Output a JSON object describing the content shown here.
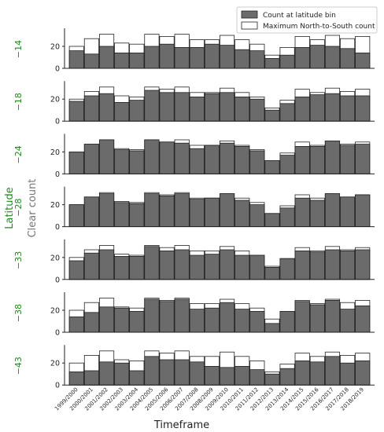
{
  "chart_data": {
    "type": "bar",
    "xlabel": "Timeframe",
    "ylabel_outer": "Latitude",
    "ylabel_inner": "Clear count",
    "ylim": [
      0,
      35
    ],
    "yticks": [
      0,
      20
    ],
    "legend": {
      "placement": "top-right",
      "entries": [
        {
          "name": "Count at latitude bin",
          "color": "#6b6b6b"
        },
        {
          "name": "Maximum North-to-South count",
          "color": "#ffffff"
        }
      ]
    },
    "categories": [
      "1999/2000",
      "2000/2001",
      "2001/2002",
      "2002/2003",
      "2003/2004",
      "2004/2005",
      "2005/2006",
      "2006/2007",
      "2007/2008",
      "2008/2009",
      "2009/2010",
      "2010/2011",
      "2011/2012",
      "2012/2013",
      "2013/2014",
      "2014/2015",
      "2015/2016",
      "2016/2017",
      "2017/2018",
      "2018/2019"
    ],
    "max_series": {
      "name": "Maximum North-to-South count",
      "values": [
        20,
        27,
        31,
        23,
        22,
        31,
        29,
        31,
        26,
        26,
        30,
        26,
        22,
        12,
        19,
        29,
        26,
        30,
        27,
        29
      ]
    },
    "panels": [
      {
        "latitude": "−14",
        "values": [
          16,
          13,
          20,
          14,
          14,
          20,
          22,
          19,
          19,
          22,
          21,
          17,
          16,
          9,
          12,
          19,
          21,
          20,
          18,
          14
        ]
      },
      {
        "latitude": "−18",
        "values": [
          18,
          23,
          25,
          17,
          19,
          28,
          26,
          26,
          22,
          25,
          26,
          22,
          20,
          10,
          16,
          22,
          24,
          25,
          23,
          23
        ]
      },
      {
        "latitude": "−24",
        "values": [
          20,
          27,
          31,
          22,
          21,
          31,
          29,
          28,
          23,
          26,
          28,
          25,
          21,
          12,
          17,
          25,
          25,
          30,
          26,
          27
        ]
      },
      {
        "latitude": "−28",
        "values": [
          20,
          27,
          30,
          22,
          21,
          30,
          28,
          30,
          25,
          26,
          30,
          24,
          20,
          12,
          17,
          26,
          24,
          30,
          27,
          29
        ]
      },
      {
        "latitude": "−33",
        "values": [
          17,
          24,
          27,
          21,
          21,
          30,
          26,
          27,
          22,
          23,
          27,
          22,
          22,
          11,
          19,
          26,
          25,
          27,
          26,
          27
        ]
      },
      {
        "latitude": "−38",
        "values": [
          14,
          18,
          23,
          22,
          19,
          30,
          28,
          30,
          21,
          22,
          27,
          21,
          19,
          8,
          19,
          28,
          25,
          29,
          21,
          24
        ]
      },
      {
        "latitude": "−43",
        "values": [
          12,
          13,
          21,
          20,
          13,
          26,
          23,
          23,
          21,
          17,
          16,
          17,
          14,
          10,
          15,
          22,
          21,
          26,
          20,
          22
        ]
      }
    ]
  }
}
